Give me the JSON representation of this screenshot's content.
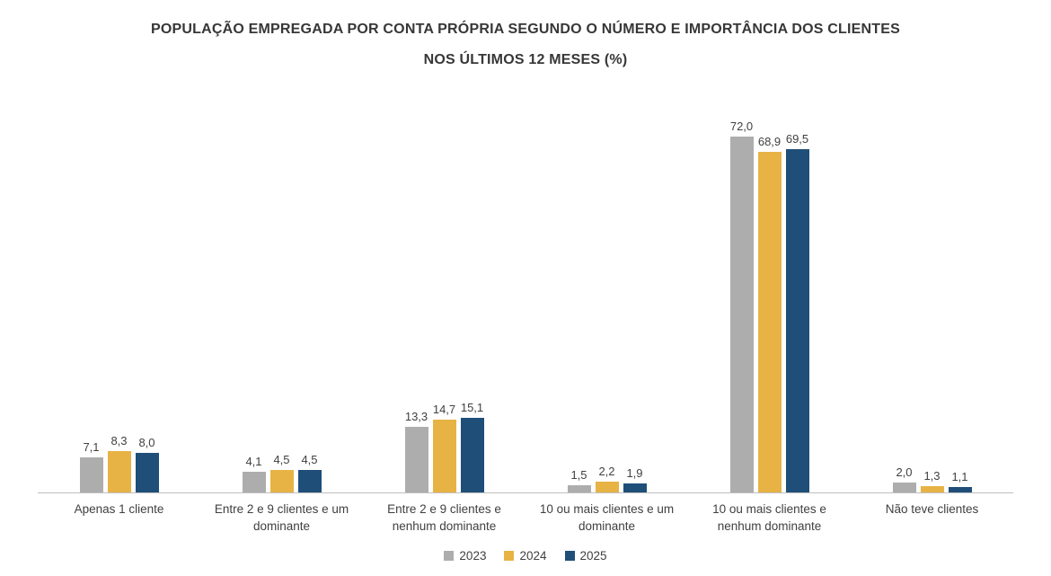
{
  "title": {
    "line1": "POPULAÇÃO EMPREGADA POR CONTA PRÓPRIA SEGUNDO O NÚMERO E IMPORTÂNCIA DOS CLIENTES",
    "line2": "NOS ÚLTIMOS 12 MESES (%)"
  },
  "chart_data": {
    "type": "bar",
    "title": "POPULAÇÃO EMPREGADA POR CONTA PRÓPRIA SEGUNDO O NÚMERO E IMPORTÂNCIA DOS CLIENTES NOS ÚLTIMOS 12 MESES (%)",
    "categories": [
      "Apenas 1 cliente",
      "Entre 2 e 9 clientes e um dominante",
      "Entre 2 e 9 clientes e nenhum dominante",
      "10 ou mais clientes e um dominante",
      "10 ou mais clientes e nenhum dominante",
      "Não teve clientes"
    ],
    "series": [
      {
        "name": "2023",
        "color": "#ADADAD",
        "values": [
          7.1,
          4.1,
          13.3,
          1.5,
          72.0,
          2.0
        ]
      },
      {
        "name": "2024",
        "color": "#E7B345",
        "values": [
          8.3,
          4.5,
          14.7,
          2.2,
          68.9,
          1.3
        ]
      },
      {
        "name": "2025",
        "color": "#1F4E79",
        "values": [
          8.0,
          4.5,
          15.1,
          1.9,
          69.5,
          1.1
        ]
      }
    ],
    "ylim": [
      0,
      80
    ],
    "grid": false,
    "legend_position": "bottom",
    "decimal_separator": ",",
    "value_labels": "above-bars"
  }
}
